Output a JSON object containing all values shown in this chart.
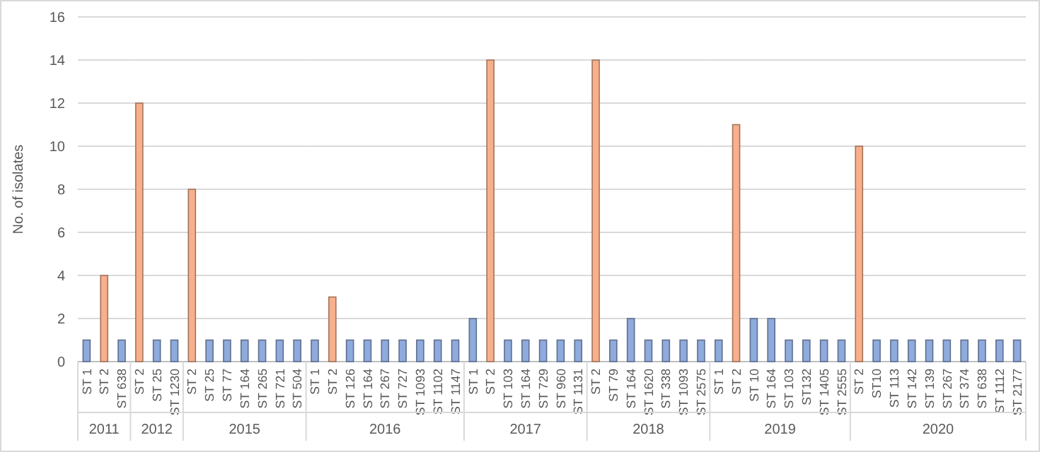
{
  "chart_data": [
    {
      "type": "bar",
      "xlabel": "2011",
      "ylabel": "No. of isolates",
      "ylim": [
        0,
        16
      ],
      "yticks": [
        0,
        2,
        4,
        6,
        8,
        10,
        12,
        14,
        16
      ],
      "grid": "y",
      "categories": [
        "ST 1",
        "ST 2",
        "ST 638"
      ],
      "values": [
        1,
        4,
        1
      ],
      "colors": [
        "#8faadc",
        "#f8b08c",
        "#8faadc"
      ]
    },
    {
      "type": "bar",
      "xlabel": "2012",
      "ylim": [
        0,
        16
      ],
      "yticks": [
        0,
        2,
        4,
        6,
        8,
        10,
        12,
        14,
        16
      ],
      "grid": "y",
      "tick_labels": "x",
      "categories": [
        "ST 2",
        "ST 25",
        "ST 1230"
      ],
      "values": [
        12,
        1,
        1
      ],
      "colors": [
        "#f8b08c",
        "#8faadc",
        "#8faadc"
      ]
    },
    {
      "type": "bar",
      "xlabel": "2015",
      "ylim": [
        0,
        16
      ],
      "yticks": [
        0,
        2,
        4,
        6,
        8,
        10,
        12,
        14,
        16
      ],
      "grid": "y",
      "tick_labels": "x",
      "categories": [
        "ST 2",
        "ST 25",
        "ST 77",
        "ST 164",
        "ST 265",
        "ST 721",
        "ST 504"
      ],
      "values": [
        8,
        1,
        1,
        1,
        1,
        1,
        1
      ],
      "colors": [
        "#f8b08c",
        "#8faadc",
        "#8faadc",
        "#8faadc",
        "#8faadc",
        "#8faadc",
        "#8faadc"
      ]
    },
    {
      "type": "bar",
      "xlabel": "2016",
      "ylim": [
        0,
        16
      ],
      "yticks": [
        0,
        2,
        4,
        6,
        8,
        10,
        12,
        14,
        16
      ],
      "grid": "y",
      "tick_labels": "x",
      "categories": [
        "ST 1",
        "ST 2",
        "ST 126",
        "ST 164",
        "ST 267",
        "ST 727",
        "ST 1093",
        "ST 1102",
        "ST 1147"
      ],
      "values": [
        1,
        3,
        1,
        1,
        1,
        1,
        1,
        1,
        1
      ],
      "colors": [
        "#8faadc",
        "#f8b08c",
        "#8faadc",
        "#8faadc",
        "#8faadc",
        "#8faadc",
        "#8faadc",
        "#8faadc",
        "#8faadc"
      ]
    },
    {
      "type": "bar",
      "xlabel": "2017",
      "ylim": [
        0,
        16
      ],
      "yticks": [
        0,
        2,
        4,
        6,
        8,
        10,
        12,
        14,
        16
      ],
      "grid": "y",
      "tick_labels": "x",
      "categories": [
        "ST 1",
        "ST 2",
        "ST 103",
        "ST 164",
        "ST 729",
        "ST 960",
        "ST 1131"
      ],
      "values": [
        2,
        14,
        1,
        1,
        1,
        1,
        1
      ],
      "colors": [
        "#8faadc",
        "#f8b08c",
        "#8faadc",
        "#8faadc",
        "#8faadc",
        "#8faadc",
        "#8faadc"
      ]
    },
    {
      "type": "bar",
      "xlabel": "2018",
      "ylim": [
        0,
        16
      ],
      "yticks": [
        0,
        2,
        4,
        6,
        8,
        10,
        12,
        14,
        16
      ],
      "grid": "y",
      "tick_labels": "x",
      "categories": [
        "ST 2",
        "ST 79",
        "ST 164",
        "ST 1620",
        "ST 338",
        "ST 1093",
        "ST 2575"
      ],
      "values": [
        14,
        1,
        2,
        1,
        1,
        1,
        1
      ],
      "colors": [
        "#f8b08c",
        "#8faadc",
        "#8faadc",
        "#8faadc",
        "#8faadc",
        "#8faadc",
        "#8faadc"
      ]
    },
    {
      "type": "bar",
      "xlabel": "2019",
      "ylim": [
        0,
        16
      ],
      "yticks": [
        0,
        2,
        4,
        6,
        8,
        10,
        12,
        14,
        16
      ],
      "grid": "y",
      "tick_labels": "x",
      "categories": [
        "ST 1",
        "ST 2",
        "ST 10",
        "ST 164",
        "ST 103",
        "ST132",
        "ST 1405",
        "ST 2555"
      ],
      "values": [
        1,
        11,
        2,
        2,
        1,
        1,
        1,
        1
      ],
      "colors": [
        "#8faadc",
        "#f8b08c",
        "#8faadc",
        "#8faadc",
        "#8faadc",
        "#8faadc",
        "#8faadc",
        "#8faadc"
      ]
    },
    {
      "type": "bar",
      "xlabel": "2020",
      "ylim": [
        0,
        16
      ],
      "yticks": [
        0,
        2,
        4,
        6,
        8,
        10,
        12,
        14,
        16
      ],
      "grid": "y",
      "tick_labels": "x",
      "categories": [
        "ST 2",
        "ST10",
        "ST 113",
        "ST 142",
        "ST 139",
        "ST 267",
        "ST 374",
        "ST 638",
        "ST 1112",
        "ST 2177"
      ],
      "values": [
        10,
        1,
        1,
        1,
        1,
        1,
        1,
        1,
        1,
        1
      ],
      "colors": [
        "#f8b08c",
        "#8faadc",
        "#8faadc",
        "#8faadc",
        "#8faadc",
        "#8faadc",
        "#8faadc",
        "#8faadc",
        "#8faadc",
        "#8faadc"
      ]
    }
  ]
}
